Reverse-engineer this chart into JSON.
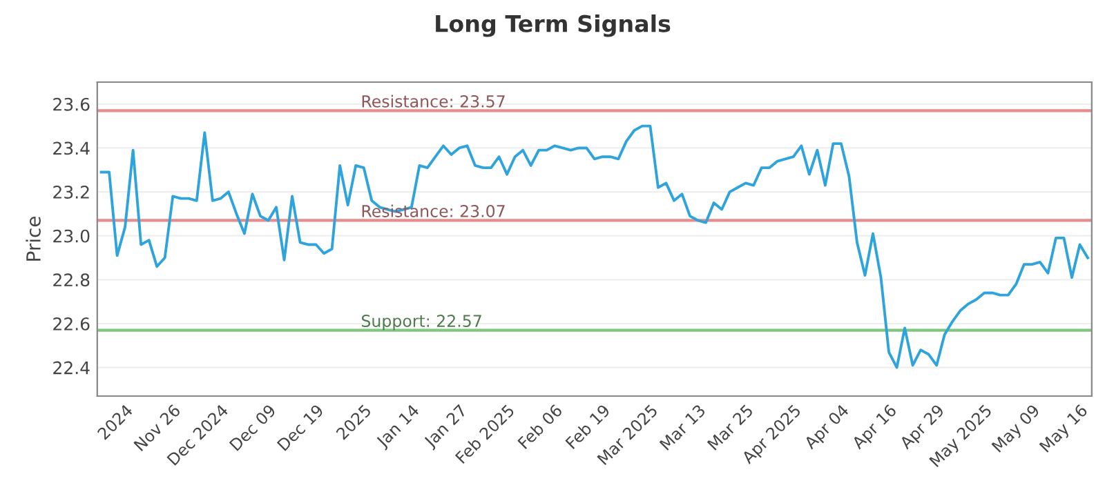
{
  "chart_data": {
    "type": "line",
    "title": "Long Term Signals",
    "ylabel": "Price",
    "categories": [
      null,
      null,
      null,
      "2024",
      null,
      null,
      null,
      null,
      null,
      "Nov 26",
      null,
      null,
      null,
      null,
      null,
      "Dec 2024",
      null,
      null,
      null,
      null,
      null,
      "Dec 09",
      null,
      null,
      null,
      null,
      null,
      "Dec 19",
      null,
      null,
      null,
      null,
      null,
      "2025",
      null,
      null,
      null,
      null,
      null,
      "Jan 14",
      null,
      null,
      null,
      null,
      null,
      "Jan 27",
      null,
      null,
      null,
      null,
      null,
      "Feb 2025",
      null,
      null,
      null,
      null,
      null,
      "Feb 06",
      null,
      null,
      null,
      null,
      null,
      "Feb 19",
      null,
      null,
      null,
      null,
      null,
      "Mar 2025",
      null,
      null,
      null,
      null,
      null,
      "Mar 13",
      null,
      null,
      null,
      null,
      null,
      "Mar 25",
      null,
      null,
      null,
      null,
      null,
      "Apr 2025",
      null,
      null,
      null,
      null,
      null,
      "Apr 04",
      null,
      null,
      null,
      null,
      null,
      "Apr 16",
      null,
      null,
      null,
      null,
      null,
      "Apr 29",
      null,
      null,
      null,
      null,
      null,
      "May 2025",
      null,
      null,
      null,
      null,
      null,
      "May 09",
      null,
      null,
      null,
      null,
      null,
      "May 16",
      null
    ],
    "series": [
      {
        "color": "#2fa4dc",
        "values": [
          23.29,
          23.29,
          22.91,
          23.04,
          23.39,
          22.96,
          22.98,
          22.86,
          22.9,
          23.18,
          23.17,
          23.17,
          23.16,
          23.47,
          23.16,
          23.17,
          23.2,
          23.1,
          23.01,
          23.19,
          23.09,
          23.07,
          23.13,
          22.89,
          23.18,
          22.97,
          22.96,
          22.96,
          22.92,
          22.94,
          23.32,
          23.14,
          23.32,
          23.31,
          23.16,
          23.13,
          23.12,
          23.11,
          23.12,
          23.13,
          23.32,
          23.31,
          23.36,
          23.41,
          23.37,
          23.4,
          23.41,
          23.32,
          23.31,
          23.31,
          23.36,
          23.28,
          23.36,
          23.39,
          23.32,
          23.39,
          23.39,
          23.41,
          23.4,
          23.39,
          23.4,
          23.4,
          23.35,
          23.36,
          23.36,
          23.35,
          23.43,
          23.48,
          23.5,
          23.5,
          23.22,
          23.24,
          23.16,
          23.19,
          23.09,
          23.07,
          23.06,
          23.15,
          23.12,
          23.2,
          23.22,
          23.24,
          23.23,
          23.31,
          23.31,
          23.34,
          23.35,
          23.36,
          23.41,
          23.28,
          23.39,
          23.23,
          23.42,
          23.42,
          23.27,
          22.97,
          22.82,
          23.01,
          22.81,
          22.47,
          22.4,
          22.58,
          22.41,
          22.48,
          22.46,
          22.41,
          22.55,
          22.61,
          22.66,
          22.69,
          22.71,
          22.74,
          22.74,
          22.73,
          22.73,
          22.78,
          22.87,
          22.87,
          22.88,
          22.83,
          22.99,
          22.99,
          22.81,
          22.96,
          22.9
        ]
      }
    ],
    "ylim": [
      22.27,
      23.7
    ],
    "yticks": [
      {
        "value": 22.4,
        "label": "22.4"
      },
      {
        "value": 22.6,
        "label": "22.6"
      },
      {
        "value": 22.8,
        "label": "22.8"
      },
      {
        "value": 23.0,
        "label": "23.0"
      },
      {
        "value": 23.2,
        "label": "23.2"
      },
      {
        "value": 23.4,
        "label": "23.4"
      },
      {
        "value": 23.6,
        "label": "23.6"
      }
    ],
    "grid": "y",
    "legend": false,
    "marker": "none",
    "line_style": "solid",
    "ref_lines": [
      {
        "axis": "y",
        "value": 23.57,
        "label": "Resistance: 23.57",
        "color": "#e58c8c"
      },
      {
        "axis": "y",
        "value": 23.07,
        "label": "Resistance: 23.07",
        "color": "#e58c8c"
      },
      {
        "axis": "y",
        "value": 22.57,
        "label": "Support: 22.57",
        "color": "#7fc77f"
      }
    ]
  }
}
